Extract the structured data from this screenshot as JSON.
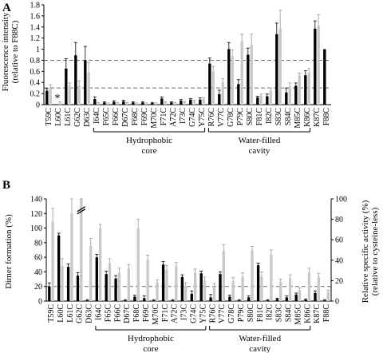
{
  "colors": {
    "black_series": "#000000",
    "gray_series": "#c8c8c8",
    "axis": "#000000",
    "dashed": "#6e6e6e"
  },
  "chart_data": [
    {
      "panel": "A",
      "type": "bar",
      "ylabel": "Fluorescence intensity",
      "ylabel2": "(relative to F88C)",
      "ylim": [
        0,
        1.8
      ],
      "yticks": [
        "0",
        "0.2",
        "0.4",
        "0.6",
        "0.8",
        "1",
        "1.2",
        "1.4",
        "1.6",
        "1.8"
      ],
      "ytick_values": [
        0,
        0.2,
        0.4,
        0.6,
        0.8,
        1,
        1.2,
        1.4,
        1.6,
        1.8
      ],
      "dashed_lines": [
        0.3,
        0.8
      ],
      "categories": [
        "T59C",
        "L60C",
        "L61C",
        "G62C",
        "D63C",
        "I64C",
        "F65C",
        "F66C",
        "D67C",
        "F68C",
        "F69C",
        "M70C",
        "F71C",
        "A72C",
        "I73C",
        "G74C",
        "Y75C",
        "R76C",
        "V77C",
        "G78C",
        "P79C",
        "S80C",
        "F81C",
        "I82C",
        "S83C",
        "S84C",
        "M85C",
        "K86C",
        "K87C",
        "F88C"
      ],
      "annotations": [
        {
          "category": "L60C",
          "text": "*"
        }
      ],
      "series": [
        {
          "values": [
            0.25,
            null,
            0.65,
            0.89,
            0.8,
            0.1,
            0.04,
            0.05,
            0.06,
            0.04,
            0.04,
            0.03,
            0.11,
            0.04,
            0.07,
            0.09,
            0.09,
            0.74,
            0.19,
            1.0,
            0.37,
            0.9,
            0.13,
            0.15,
            1.27,
            0.22,
            0.34,
            0.53,
            1.37,
            1.0
          ],
          "errors": [
            0.04,
            null,
            0.18,
            0.23,
            0.25,
            0.04,
            0.01,
            0.02,
            0.02,
            0.01,
            0.01,
            0.01,
            0.03,
            0.01,
            0.02,
            0.02,
            0.03,
            0.1,
            0.07,
            0.12,
            0.08,
            0.12,
            0.02,
            0.04,
            0.2,
            0.08,
            0.05,
            0.08,
            0.14,
            0.0
          ]
        },
        {
          "values": [
            0.29,
            0.03,
            0.34,
            0.35,
            0.58,
            0.03,
            0.02,
            0.03,
            0.03,
            0.02,
            0.02,
            0.02,
            0.04,
            0.03,
            0.04,
            0.06,
            0.1,
            0.6,
            0.4,
            0.87,
            1.15,
            1.08,
            0.16,
            0.25,
            1.38,
            0.33,
            0.53,
            0.58,
            1.42,
            null
          ],
          "errors": [
            0.07,
            0.02,
            0.05,
            0.08,
            0.18,
            0.01,
            0.01,
            0.01,
            0.01,
            0.01,
            0.01,
            0.01,
            0.01,
            0.01,
            0.01,
            0.02,
            0.02,
            0.09,
            0.07,
            0.12,
            0.12,
            0.19,
            0.03,
            0.05,
            0.32,
            0.06,
            0.04,
            0.07,
            0.2,
            null
          ]
        }
      ],
      "groups": [
        {
          "label": "Hydrophobic",
          "label2": "core",
          "from": "I64C",
          "to": "Y75C"
        },
        {
          "label": "Water-filled",
          "label2": "cavity",
          "from": "R76C",
          "to": "K86C"
        }
      ]
    },
    {
      "panel": "B",
      "type": "bar",
      "ylabel": "Dimer formation (%)",
      "ylabel_right": "Relative specific activity (%)",
      "ylabel_right2": "(relative to cysteine-less)",
      "ylim": [
        0,
        140
      ],
      "ylim_right": [
        0,
        100
      ],
      "yticks": [
        "0",
        "20",
        "40",
        "60",
        "80",
        "100",
        "120",
        "140"
      ],
      "ytick_values": [
        0,
        20,
        40,
        60,
        80,
        100,
        120,
        140
      ],
      "yticks_right": [
        "0",
        "20",
        "40",
        "60",
        "80",
        "100"
      ],
      "ytick_values_right": [
        0,
        20,
        40,
        60,
        80,
        100
      ],
      "dashed_lines": [
        20
      ],
      "categories": [
        "T59C",
        "L60C",
        "L61C",
        "G62C",
        "D63C",
        "I64C",
        "F65C",
        "F66C",
        "D67C",
        "F68C",
        "F69C",
        "M70C",
        "F71C",
        "A72C",
        "I73C",
        "G74C",
        "Y75C",
        "R76C",
        "V77C",
        "G78C",
        "P79C",
        "S80C",
        "F81C",
        "I82C",
        "S83C",
        "S84C",
        "M85C",
        "K86C",
        "K87C",
        "F88C"
      ],
      "series": [
        {
          "axis": "left",
          "values": [
            20,
            90,
            47,
            35,
            1,
            60,
            37,
            31,
            1,
            6,
            4,
            1,
            50,
            1,
            33,
            10,
            38,
            5,
            37,
            6,
            1,
            5,
            49,
            1,
            3,
            5,
            9,
            2,
            11,
            1
          ],
          "errors": [
            5,
            3,
            4,
            4,
            1,
            4,
            4,
            4,
            1,
            2,
            3,
            1,
            4,
            1,
            3,
            4,
            3,
            4,
            3,
            2,
            1,
            2,
            3,
            1,
            1,
            2,
            2,
            1,
            3,
            1
          ]
        },
        {
          "axis": "left",
          "values": [
            109,
            48,
            120,
            142,
            76,
            100,
            52,
            39,
            45,
            100,
            57,
            26,
            43,
            48,
            20,
            39,
            28,
            20,
            69,
            27,
            33,
            69,
            34,
            64,
            26,
            31,
            15,
            39,
            33,
            12
          ],
          "errors": [
            18,
            10,
            25,
            15,
            10,
            5,
            6,
            6,
            5,
            12,
            6,
            3,
            6,
            5,
            5,
            5,
            5,
            4,
            8,
            5,
            6,
            6,
            6,
            6,
            4,
            5,
            3,
            6,
            5,
            3
          ]
        }
      ],
      "groups": [
        {
          "label": "Hydrophobic",
          "label2": "core",
          "from": "I64C",
          "to": "Y75C"
        },
        {
          "label": "Water-filled",
          "label2": "cavity",
          "from": "R76C",
          "to": "K86C"
        }
      ]
    }
  ]
}
